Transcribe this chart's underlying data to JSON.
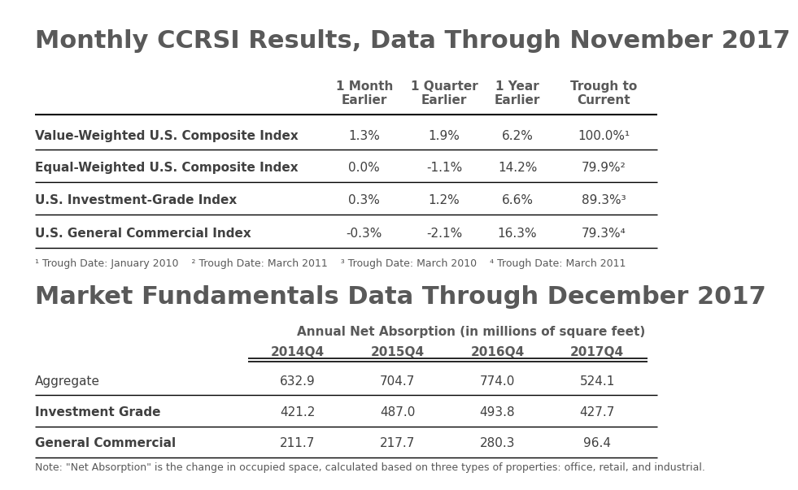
{
  "title1": "Monthly CCRSI Results, Data Through November 2017",
  "title2": "Market Fundamentals Data Through December 2017",
  "table1_headers": [
    "1 Month\nEarlier",
    "1 Quarter\nEarlier",
    "1 Year\nEarlier",
    "Trough to\nCurrent"
  ],
  "table1_rows": [
    [
      "Value-Weighted U.S. Composite Index",
      "1.3%",
      "1.9%",
      "6.2%",
      "100.0%¹"
    ],
    [
      "Equal-Weighted U.S. Composite Index",
      "0.0%",
      "-1.1%",
      "14.2%",
      "79.9%²"
    ],
    [
      "U.S. Investment-Grade Index",
      "0.3%",
      "1.2%",
      "6.6%",
      "89.3%³"
    ],
    [
      "U.S. General Commercial Index",
      "-0.3%",
      "-2.1%",
      "16.3%",
      "79.3%⁴"
    ]
  ],
  "footnote1": "¹ Trough Date: January 2010    ² Trough Date: March 2011    ³ Trough Date: March 2010    ⁴ Trough Date: March 2011",
  "table2_subtitle": "Annual Net Absorption (in millions of square feet)",
  "table2_headers": [
    "2014Q4",
    "2015Q4",
    "2016Q4",
    "2017Q4"
  ],
  "table2_rows": [
    [
      "Aggregate",
      "632.9",
      "704.7",
      "774.0",
      "524.1"
    ],
    [
      "Investment Grade",
      "421.2",
      "487.0",
      "493.8",
      "427.7"
    ],
    [
      "General Commercial",
      "211.7",
      "217.7",
      "280.3",
      "96.4"
    ]
  ],
  "footnote2": "Note: \"Net Absorption\" is the change in occupied space, calculated based on three types of properties: office, retail, and industrial.",
  "title_color": "#595959",
  "header_color": "#595959",
  "row_label_color": "#404040",
  "data_color": "#404040",
  "footnote_color": "#595959",
  "bg_color": "#ffffff",
  "line_color": "#000000",
  "title1_fontsize": 22,
  "title2_fontsize": 22,
  "header_fontsize": 11,
  "row_fontsize": 11,
  "footnote_fontsize": 9
}
